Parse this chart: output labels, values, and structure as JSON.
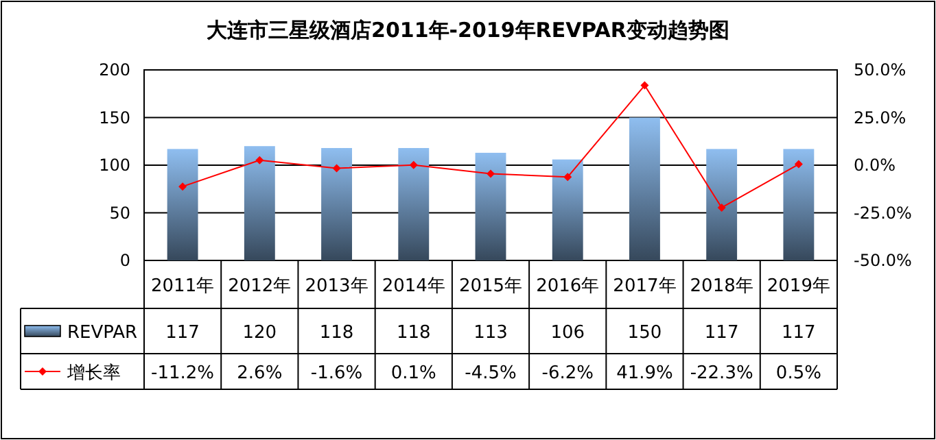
{
  "chart_data": {
    "type": "bar",
    "title": "大连市三星级酒店2011年-2019年REVPAR变动趋势图",
    "categories": [
      "2011年",
      "2012年",
      "2013年",
      "2014年",
      "2015年",
      "2016年",
      "2017年",
      "2018年",
      "2019年"
    ],
    "series": [
      {
        "name": "REVPAR",
        "color": "#8fbef0",
        "values": [
          117,
          120,
          118,
          118,
          113,
          106,
          150,
          117,
          117
        ],
        "value_labels": [
          "117",
          "120",
          "118",
          "118",
          "113",
          "106",
          "150",
          "117",
          "117"
        ]
      },
      {
        "name": "增长率",
        "type": "line",
        "axis": "y2",
        "color": "#ff0000",
        "marker": "diamond",
        "values": [
          -11.2,
          2.6,
          -1.6,
          0.1,
          -4.5,
          -6.2,
          41.9,
          -22.3,
          0.5
        ],
        "value_labels": [
          "-11.2%",
          "2.6%",
          "-1.6%",
          "0.1%",
          "-4.5%",
          "-6.2%",
          "41.9%",
          "-22.3%",
          "0.5%"
        ]
      }
    ],
    "ylim": [
      0,
      200
    ],
    "yticks": [
      0,
      50,
      100,
      150,
      200
    ],
    "y2lim": [
      -50,
      50
    ],
    "y2ticks": [
      {
        "value": -50,
        "label": "-50.0%"
      },
      {
        "value": -25,
        "label": "-25.0%"
      },
      {
        "value": 0,
        "label": "0.0%"
      },
      {
        "value": 25,
        "label": "25.0%"
      },
      {
        "value": 50,
        "label": "50.0%"
      }
    ],
    "grid": "y",
    "legend": "bottom left"
  }
}
